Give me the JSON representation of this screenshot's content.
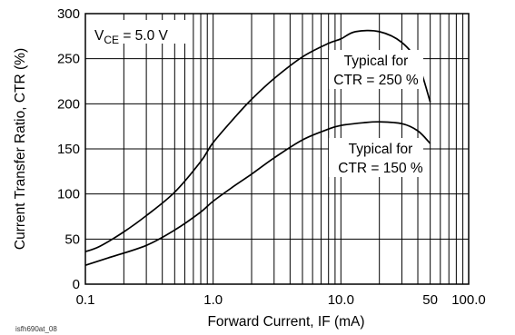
{
  "chart_data": {
    "type": "line",
    "title": "",
    "xlabel": "Forward Current, IF (mA)",
    "ylabel": "Current Transfer Ratio, CTR (%)",
    "x_scale": "log",
    "xlim": [
      0.1,
      100
    ],
    "ylim": [
      0,
      300
    ],
    "grid": true,
    "x_tick_labels": [
      "0.1",
      "1.0",
      "10.0",
      "50",
      "100.0"
    ],
    "x_tick_values": [
      0.1,
      1,
      10,
      50,
      100
    ],
    "y_tick_labels": [
      "0",
      "50",
      "100",
      "150",
      "200",
      "250",
      "300"
    ],
    "y_tick_values": [
      0,
      50,
      100,
      150,
      200,
      250,
      300
    ],
    "condition": {
      "main": "V",
      "sub": "CE",
      "rest": " = 5.0 V"
    },
    "annotations": [
      {
        "line1": "Typical for",
        "line2": "CTR = 250 %"
      },
      {
        "line1": "Typical for",
        "line2": "CTR = 150 %"
      }
    ],
    "figure_id": "isfh690at_08",
    "series": [
      {
        "x": [
          0.1,
          0.13,
          0.2,
          0.3,
          0.5,
          0.8,
          1,
          1.5,
          2,
          3,
          5,
          8,
          10,
          13,
          20,
          30,
          40,
          50
        ],
        "values": [
          36,
          42,
          58,
          76,
          102,
          136,
          157,
          186,
          205,
          228,
          252,
          267,
          272,
          280,
          280,
          268,
          245,
          202
        ]
      },
      {
        "x": [
          0.1,
          0.15,
          0.3,
          0.5,
          0.8,
          1,
          1.5,
          2,
          3,
          5,
          8,
          10,
          15,
          20,
          30,
          40,
          50
        ],
        "values": [
          21,
          29,
          43,
          60,
          80,
          92,
          110,
          122,
          140,
          160,
          172,
          176,
          179,
          180,
          178,
          170,
          156
        ]
      }
    ]
  }
}
